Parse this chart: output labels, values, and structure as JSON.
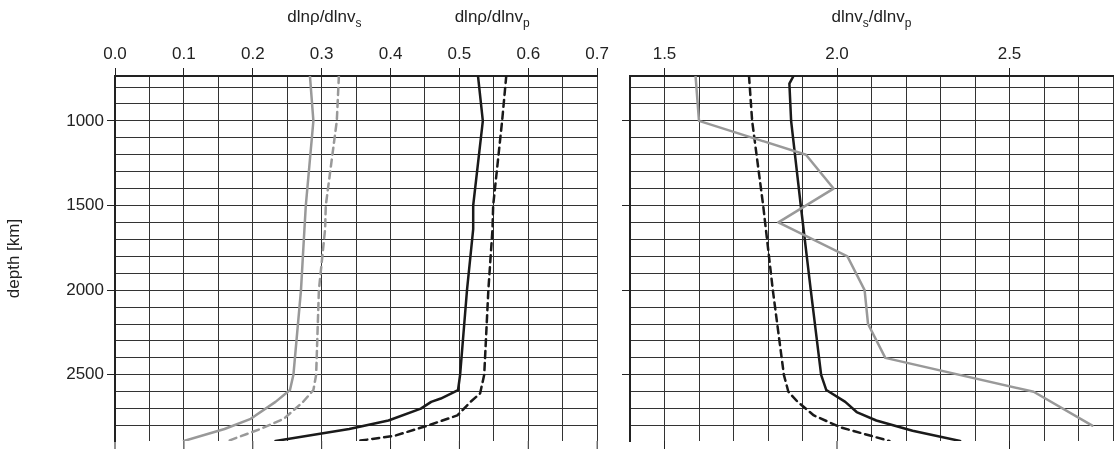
{
  "chart_data": [
    {
      "type": "line",
      "ylabel": "depth [km]",
      "xlim": [
        0,
        0.7
      ],
      "xticks": [
        {
          "value": 0,
          "label": "0.0"
        },
        {
          "value": 0.05,
          "label": null
        },
        0.1,
        {
          "value": 0.15,
          "label": null
        },
        0.2,
        {
          "value": 0.25,
          "label": null
        },
        0.3,
        {
          "value": 0.35,
          "label": null
        },
        0.4,
        {
          "value": 0.45,
          "label": null
        },
        0.5,
        {
          "value": 0.55,
          "label": null
        },
        0.6,
        {
          "value": 0.65,
          "label": null
        },
        0.7
      ],
      "ylim": [
        2891,
        735
      ],
      "yticks": [
        {
          "value": 800,
          "label": null
        },
        {
          "value": 900,
          "label": null
        },
        1000,
        {
          "value": 1100,
          "label": null
        },
        {
          "value": 1200,
          "label": null
        },
        {
          "value": 1300,
          "label": null
        },
        {
          "value": 1400,
          "label": null
        },
        1500,
        {
          "value": 1600,
          "label": null
        },
        {
          "value": 1700,
          "label": null
        },
        {
          "value": 1800,
          "label": null
        },
        {
          "value": 1900,
          "label": null
        },
        2000,
        {
          "value": 2100,
          "label": null
        },
        {
          "value": 2200,
          "label": null
        },
        {
          "value": 2300,
          "label": null
        },
        {
          "value": 2400,
          "label": null
        },
        2500,
        {
          "value": 2600,
          "label": null
        },
        {
          "value": 2700,
          "label": null
        },
        {
          "value": 2800,
          "label": null
        }
      ],
      "grid": true,
      "marker": "none",
      "series": [
        {
          "name": "dlnρ/dlnv$_{s}$",
          "color": "#999999",
          "line_style": "solid",
          "x": [
            0.283,
            0.288,
            0.277,
            0.275,
            0.27,
            0.259,
            0.254,
            0.233,
            0.197,
            0.159,
            0.1
          ],
          "values": [
            735,
            1000,
            1500,
            1640,
            2000,
            2500,
            2590,
            2660,
            2760,
            2820,
            2891
          ]
        },
        {
          "color": "#999999",
          "line_style": "dashed",
          "x": [
            0.325,
            0.322,
            0.306,
            0.305,
            0.296,
            0.292,
            0.288,
            0.273,
            0.245,
            0.211,
            0.164
          ],
          "values": [
            735,
            1000,
            1500,
            1640,
            2000,
            2500,
            2590,
            2660,
            2760,
            2820,
            2891
          ]
        },
        {
          "name": "dlnρ/dlnv$_{p}$",
          "color": "#1a1a1a",
          "line_style": "solid",
          "x": [
            0.527,
            0.534,
            0.52,
            0.52,
            0.511,
            0.501,
            0.498,
            0.473,
            0.459,
            0.444,
            0.397,
            0.34,
            0.233
          ],
          "values": [
            735,
            1000,
            1500,
            1640,
            2000,
            2500,
            2590,
            2640,
            2660,
            2700,
            2770,
            2820,
            2891
          ]
        },
        {
          "color": "#1a1a1a",
          "line_style": "dashed",
          "x": [
            0.568,
            0.562,
            0.549,
            0.548,
            0.542,
            0.536,
            0.53,
            0.516,
            0.497,
            0.454,
            0.406,
            0.352
          ],
          "values": [
            735,
            1000,
            1500,
            1640,
            2000,
            2500,
            2610,
            2660,
            2740,
            2800,
            2860,
            2891
          ]
        }
      ]
    },
    {
      "type": "line",
      "xlabel": "dlnv$_{s}$/dlnv$_{p}$",
      "tick_labels": "x",
      "xlim": [
        1.4,
        2.8
      ],
      "xticks": [
        {
          "value": 1.4,
          "label": null
        },
        1.5,
        {
          "value": 1.6,
          "label": null
        },
        {
          "value": 1.7,
          "label": null
        },
        {
          "value": 1.8,
          "label": null
        },
        {
          "value": 1.9,
          "label": null
        },
        {
          "value": 2,
          "label": "2.0"
        },
        {
          "value": 2.1,
          "label": null
        },
        {
          "value": 2.2,
          "label": null
        },
        {
          "value": 2.3,
          "label": null
        },
        {
          "value": 2.4,
          "label": null
        },
        2.5,
        {
          "value": 2.6,
          "label": null
        },
        {
          "value": 2.7,
          "label": null
        },
        {
          "value": 2.8,
          "label": null
        }
      ],
      "ylim": [
        2891,
        735
      ],
      "yticks": [
        {
          "value": 800,
          "label": null
        },
        {
          "value": 900,
          "label": null
        },
        1000,
        {
          "value": 1100,
          "label": null
        },
        {
          "value": 1200,
          "label": null
        },
        {
          "value": 1300,
          "label": null
        },
        {
          "value": 1400,
          "label": null
        },
        1500,
        {
          "value": 1600,
          "label": null
        },
        {
          "value": 1700,
          "label": null
        },
        {
          "value": 1800,
          "label": null
        },
        {
          "value": 1900,
          "label": null
        },
        2000,
        {
          "value": 2100,
          "label": null
        },
        {
          "value": 2200,
          "label": null
        },
        {
          "value": 2300,
          "label": null
        },
        {
          "value": 2400,
          "label": null
        },
        2500,
        {
          "value": 2600,
          "label": null
        },
        {
          "value": 2700,
          "label": null
        },
        {
          "value": 2800,
          "label": null
        }
      ],
      "grid": true,
      "marker": "none",
      "series": [
        {
          "color": "#999999",
          "line_style": "solid",
          "x": [
            1.59,
            1.6,
            1.91,
            1.99,
            1.83,
            2.03,
            2.08,
            2.09,
            2.14,
            2.57,
            2.74
          ],
          "values": [
            735,
            1000,
            1200,
            1400,
            1600,
            1800,
            2000,
            2200,
            2400,
            2600,
            2800
          ]
        },
        {
          "color": "#1a1a1a",
          "line_style": "solid",
          "x": [
            1.874,
            1.862,
            1.867,
            1.895,
            1.924,
            1.954,
            1.969,
            2.024,
            2.057,
            2.114,
            2.219,
            2.357
          ],
          "values": [
            735,
            780,
            1000,
            1500,
            2000,
            2500,
            2590,
            2660,
            2720,
            2770,
            2830,
            2891
          ]
        },
        {
          "color": "#1a1a1a",
          "line_style": "dashed",
          "x": [
            1.745,
            1.754,
            1.786,
            1.814,
            1.846,
            1.859,
            1.886,
            1.933,
            2.01,
            2.152
          ],
          "values": [
            735,
            1000,
            1500,
            2000,
            2500,
            2600,
            2660,
            2740,
            2810,
            2891
          ]
        }
      ]
    }
  ]
}
